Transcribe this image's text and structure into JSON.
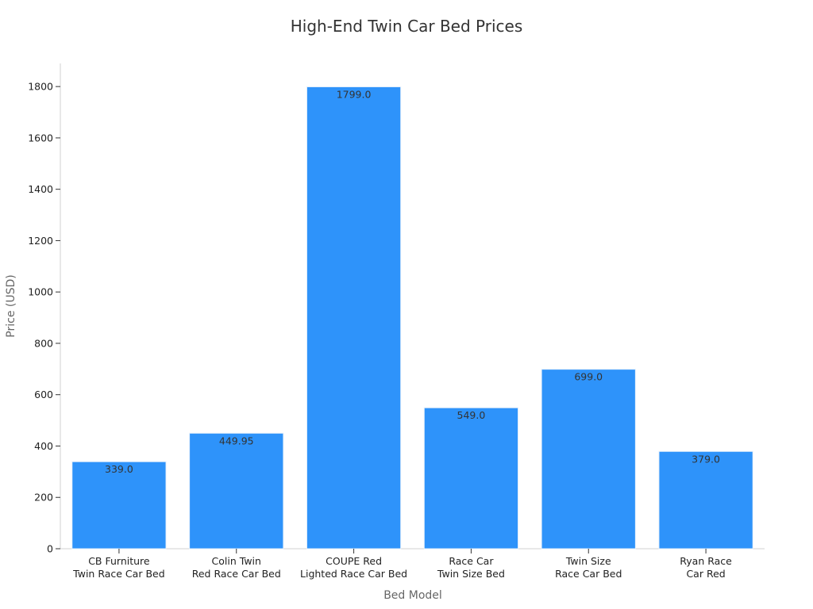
{
  "chart_data": {
    "type": "bar",
    "title": "High-End Twin Car Bed Prices",
    "xlabel": "Bed Model",
    "ylabel": "Price (USD)",
    "categories": [
      [
        "CB Furniture",
        "Twin Race Car Bed"
      ],
      [
        "Colin Twin",
        "Red Race Car Bed"
      ],
      [
        "COUPE Red",
        "Lighted Race Car Bed"
      ],
      [
        "Race Car",
        "Twin Size Bed"
      ],
      [
        "Twin Size",
        "Race Car Bed"
      ],
      [
        "Ryan Race",
        "Car Red"
      ]
    ],
    "values": [
      339.0,
      449.95,
      1799.0,
      549.0,
      699.0,
      379.0
    ],
    "value_labels": [
      "339.0",
      "449.95",
      "1799.0",
      "549.0",
      "699.0",
      "379.0"
    ],
    "ylim": [
      0,
      1890
    ],
    "yticks": [
      0,
      200,
      400,
      600,
      800,
      1000,
      1200,
      1400,
      1600,
      1800
    ],
    "grid": false,
    "legend": "none",
    "bar_color": "#2e93fa",
    "bar_edge_color": "#e6f0fb"
  }
}
